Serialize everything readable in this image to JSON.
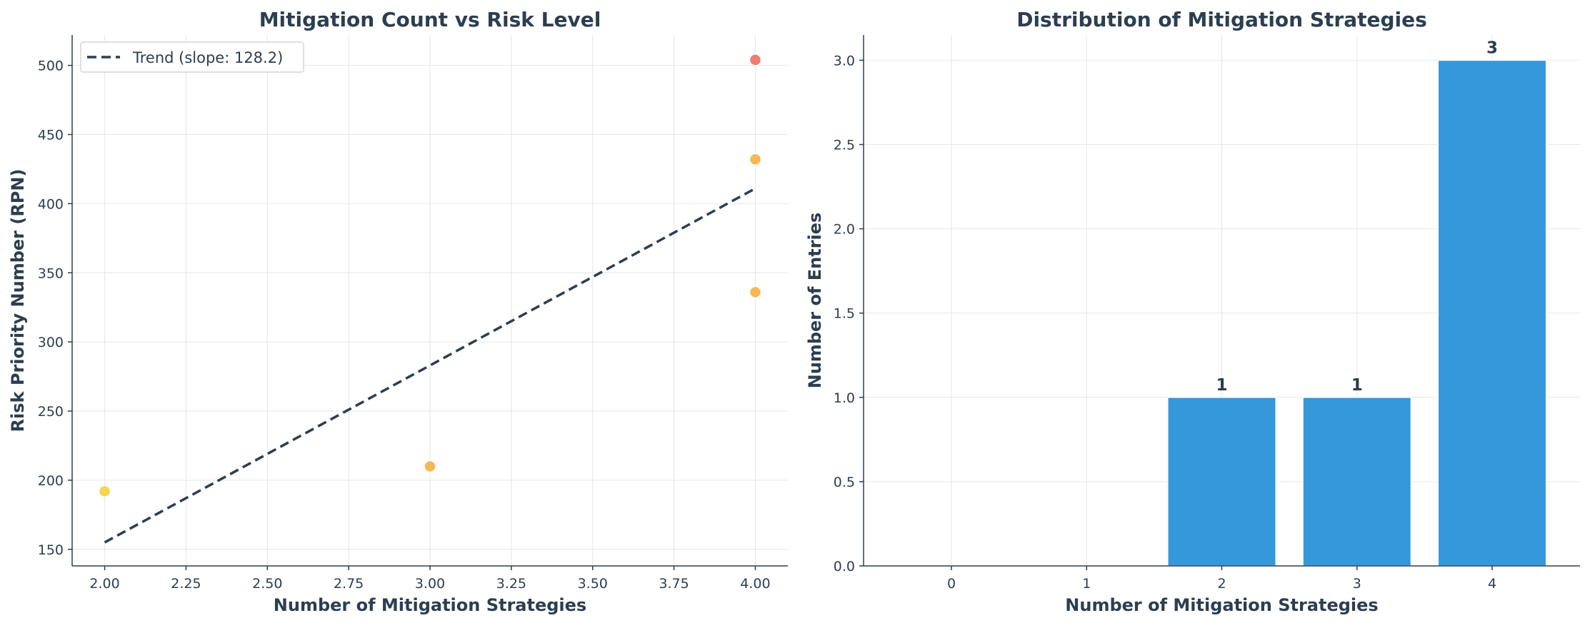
{
  "chart_data": [
    {
      "type": "scatter",
      "title": "Mitigation Count vs Risk Level",
      "xlabel": "Number of Mitigation Strategies",
      "ylabel": "Risk Priority Number (RPN)",
      "xlim": [
        1.9,
        4.1
      ],
      "ylim": [
        138,
        522
      ],
      "xticks": [
        2.0,
        2.25,
        2.5,
        2.75,
        3.0,
        3.25,
        3.5,
        3.75,
        4.0
      ],
      "xtick_labels": [
        "2.00",
        "2.25",
        "2.50",
        "2.75",
        "3.00",
        "3.25",
        "3.50",
        "3.75",
        "4.00"
      ],
      "yticks": [
        150,
        200,
        250,
        300,
        350,
        400,
        450,
        500
      ],
      "yticks_labels": [
        "150",
        "200",
        "250",
        "300",
        "350",
        "400",
        "450",
        "500"
      ],
      "grid": true,
      "points": [
        {
          "x": 2,
          "y": 192,
          "color": "#f4d03f"
        },
        {
          "x": 3,
          "y": 210,
          "color": "#f5b041"
        },
        {
          "x": 4,
          "y": 336,
          "color": "#f5b041"
        },
        {
          "x": 4,
          "y": 432,
          "color": "#f5b041"
        },
        {
          "x": 4,
          "y": 504,
          "color": "#ec7063"
        }
      ],
      "trend": {
        "x": [
          2,
          4
        ],
        "y": [
          155,
          411
        ],
        "color": "#2c3e50",
        "style": "dashed"
      },
      "legend": {
        "position": "top-left",
        "entries": [
          "Trend (slope: 128.2)"
        ]
      }
    },
    {
      "type": "bar",
      "title": "Distribution of Mitigation Strategies",
      "xlabel": "Number of Mitigation Strategies",
      "ylabel": "Number of Entries",
      "categories": [
        "0",
        "1",
        "2",
        "3",
        "4"
      ],
      "values": [
        0,
        0,
        1,
        1,
        3
      ],
      "data_labels": [
        "",
        "",
        "1",
        "1",
        "3"
      ],
      "ylim": [
        0,
        3.15
      ],
      "yticks": [
        0,
        0.5,
        1.0,
        1.5,
        2.0,
        2.5,
        3.0
      ],
      "yticks_labels": [
        "0.0",
        "0.5",
        "1.0",
        "1.5",
        "2.0",
        "2.5",
        "3.0"
      ],
      "bar_color": "#3498db",
      "grid": true
    }
  ]
}
